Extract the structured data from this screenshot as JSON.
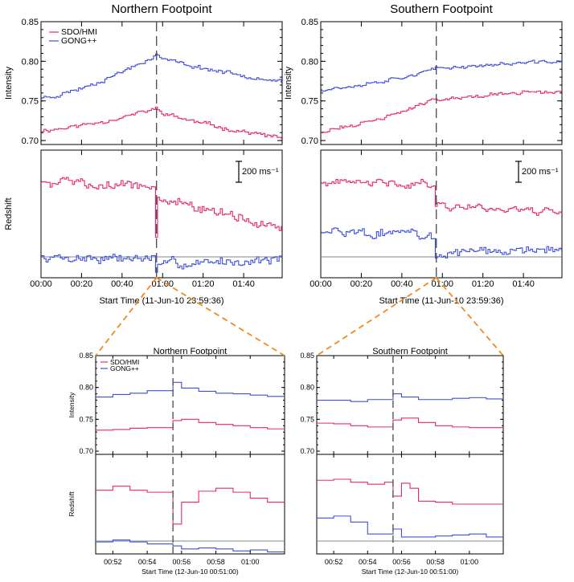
{
  "colors": {
    "sdo": "#e8276b",
    "gong": "#3f4fd9",
    "baseline": "#7a8a8a",
    "zoom_line": "#f08a1e",
    "event": "#555555"
  },
  "scale_bar_label": "200 ms⁻¹",
  "chart_data": [
    {
      "id": "north-top",
      "type": "line",
      "title": "Northern Footpoint",
      "xlabel": "Start Time (11-Jun-10 23:59:36)",
      "x_ticks": [
        "00:00",
        "00:20",
        "00:40",
        "01:00",
        "01:20",
        "01:40"
      ],
      "xlim": [
        0,
        119
      ],
      "event_time": 57,
      "intensity": {
        "ylabel": "Intensity",
        "ylim": [
          0.695,
          0.85
        ],
        "yticks": [
          "0.70",
          "0.75",
          "0.80",
          "0.85"
        ],
        "legend": [
          "SDO/HMI",
          "GONG++"
        ],
        "series": [
          {
            "name": "SDO/HMI",
            "color_key": "sdo",
            "shape": "ramp",
            "start": 0.713,
            "peak": 0.74,
            "end": 0.703,
            "noise": 0.0025,
            "seed": 11
          },
          {
            "name": "GONG++",
            "color_key": "gong",
            "shape": "ramp",
            "start": 0.754,
            "peak": 0.808,
            "end": 0.775,
            "noise": 0.0025,
            "seed": 23
          }
        ]
      },
      "redshift": {
        "ylabel": "Redshift",
        "ylim": [
          0,
          1
        ],
        "series": [
          {
            "name": "SDO/HMI",
            "color_key": "sdo",
            "shape": "drop",
            "start": 0.76,
            "pre": 0.72,
            "dip": 0.34,
            "post": 0.64,
            "end": 0.38,
            "noise": 0.035,
            "seed": 5
          },
          {
            "name": "GONG++",
            "color_key": "gong",
            "shape": "drop",
            "start": 0.16,
            "pre": 0.15,
            "dip": 0.05,
            "post": 0.1,
            "end": 0.15,
            "noise": 0.035,
            "seed": 7
          }
        ]
      }
    },
    {
      "id": "south-top",
      "type": "line",
      "title": "Southern Footpoint",
      "xlabel": "Start Time (11-Jun-10 23:59:36)",
      "x_ticks": [
        "00:00",
        "00:20",
        "00:40",
        "01:00",
        "01:20",
        "01:40"
      ],
      "xlim": [
        0,
        119
      ],
      "event_time": 57,
      "intensity": {
        "ylabel": "Intensity",
        "ylim": [
          0.695,
          0.85
        ],
        "yticks": [
          "0.70",
          "0.75",
          "0.80",
          "0.85"
        ],
        "series": [
          {
            "name": "SDO/HMI",
            "color_key": "sdo",
            "shape": "ramp",
            "start": 0.712,
            "peak": 0.752,
            "end": 0.762,
            "noise": 0.0025,
            "seed": 31
          },
          {
            "name": "GONG++",
            "color_key": "gong",
            "shape": "ramp",
            "start": 0.765,
            "peak": 0.79,
            "end": 0.8,
            "noise": 0.0022,
            "seed": 37
          }
        ]
      },
      "redshift": {
        "ylabel": "",
        "ylim": [
          0,
          1
        ],
        "series": [
          {
            "name": "SDO/HMI",
            "color_key": "sdo",
            "shape": "drop",
            "start": 0.74,
            "pre": 0.74,
            "dip": 0.55,
            "post": 0.57,
            "end": 0.52,
            "noise": 0.03,
            "seed": 41
          },
          {
            "name": "GONG++",
            "color_key": "gong",
            "shape": "drop",
            "start": 0.38,
            "pre": 0.33,
            "dip": 0.16,
            "post": 0.18,
            "end": 0.22,
            "noise": 0.035,
            "seed": 43
          }
        ]
      }
    },
    {
      "id": "north-zoom",
      "type": "line",
      "title": "Northern Footpoint",
      "xlabel": "Start Time (12-Jun-10 00:51:00)",
      "x_ticks": [
        "00:52",
        "00:54",
        "00:56",
        "00:58",
        "01:00"
      ],
      "xlim": [
        51,
        62
      ],
      "x_tick_values": [
        52,
        54,
        56,
        58,
        60
      ],
      "event_time": 55.5,
      "intensity": {
        "ylabel": "Intensity",
        "ylim": [
          0.695,
          0.85
        ],
        "yticks": [
          "0.70",
          "0.75",
          "0.80",
          "0.85"
        ],
        "legend": [
          "SDO/HMI",
          "GONG++"
        ],
        "series": [
          {
            "name": "SDO/HMI",
            "color_key": "sdo",
            "step_edges": [
              51,
              52,
              53,
              54,
              55.5,
              56,
              57,
              58,
              59,
              60,
              61,
              62
            ],
            "step_values": [
              0.733,
              0.734,
              0.736,
              0.737,
              0.748,
              0.75,
              0.745,
              0.742,
              0.74,
              0.737,
              0.735
            ]
          },
          {
            "name": "GONG++",
            "color_key": "gong",
            "step_edges": [
              51,
              52,
              53,
              54,
              55.5,
              56,
              57,
              58,
              59,
              60,
              61,
              62
            ],
            "step_values": [
              0.785,
              0.789,
              0.791,
              0.795,
              0.808,
              0.799,
              0.794,
              0.791,
              0.79,
              0.788,
              0.786
            ]
          }
        ]
      },
      "redshift": {
        "ylabel": "Redshift",
        "ylim": [
          0,
          1
        ],
        "series": [
          {
            "name": "SDO/HMI",
            "color_key": "sdo",
            "step_edges": [
              51,
              52,
              53,
              54,
              55,
              55.5,
              56,
              57,
              58,
              59,
              60,
              61,
              62
            ],
            "step_values": [
              0.64,
              0.68,
              0.64,
              0.62,
              0.62,
              0.3,
              0.52,
              0.63,
              0.66,
              0.62,
              0.56,
              0.52
            ]
          },
          {
            "name": "GONG++",
            "color_key": "gong",
            "step_edges": [
              51,
              52,
              53,
              54,
              55.5,
              56,
              57,
              58,
              59,
              60,
              61,
              62
            ],
            "step_values": [
              0.12,
              0.14,
              0.12,
              0.1,
              0.08,
              0.05,
              0.06,
              0.05,
              0.03,
              0.04,
              0.02
            ]
          }
        ]
      }
    },
    {
      "id": "south-zoom",
      "type": "line",
      "title": "Southern Footpoint",
      "xlabel": "Start Time (12-Jun-10 00:51:00)",
      "x_ticks": [
        "00:52",
        "00:54",
        "00:56",
        "00:58",
        "01:00"
      ],
      "xlim": [
        51,
        62
      ],
      "x_tick_values": [
        52,
        54,
        56,
        58,
        60
      ],
      "event_time": 55.5,
      "intensity": {
        "ylabel": "",
        "ylim": [
          0.695,
          0.85
        ],
        "yticks": [
          "0.70",
          "0.75",
          "0.80",
          "0.85"
        ],
        "series": [
          {
            "name": "SDO/HMI",
            "color_key": "sdo",
            "step_edges": [
              51,
              52,
              53,
              54,
              55.5,
              56,
              57,
              58,
              59,
              60,
              61,
              62
            ],
            "step_values": [
              0.744,
              0.743,
              0.74,
              0.738,
              0.749,
              0.752,
              0.745,
              0.74,
              0.738,
              0.737,
              0.737
            ]
          },
          {
            "name": "GONG++",
            "color_key": "gong",
            "step_edges": [
              51,
              52,
              53,
              54,
              55.5,
              56,
              57,
              58,
              59,
              60,
              61,
              62
            ],
            "step_values": [
              0.78,
              0.78,
              0.778,
              0.781,
              0.79,
              0.785,
              0.781,
              0.781,
              0.783,
              0.784,
              0.782
            ]
          }
        ]
      },
      "redshift": {
        "ylabel": "",
        "ylim": [
          0,
          1
        ],
        "series": [
          {
            "name": "SDO/HMI",
            "color_key": "sdo",
            "step_edges": [
              51,
              52,
              53,
              54,
              55,
              55.5,
              56,
              56.5,
              57,
              58,
              59,
              60,
              61,
              62
            ],
            "step_values": [
              0.74,
              0.75,
              0.72,
              0.7,
              0.72,
              0.58,
              0.71,
              0.66,
              0.53,
              0.52,
              0.5,
              0.5,
              0.5
            ]
          },
          {
            "name": "GONG++",
            "color_key": "gong",
            "step_edges": [
              51,
              52,
              53,
              54,
              55.5,
              56,
              57,
              58,
              59,
              60,
              61,
              62
            ],
            "step_values": [
              0.36,
              0.38,
              0.32,
              0.2,
              0.25,
              0.17,
              0.17,
              0.18,
              0.19,
              0.2,
              0.17
            ]
          }
        ]
      }
    }
  ]
}
